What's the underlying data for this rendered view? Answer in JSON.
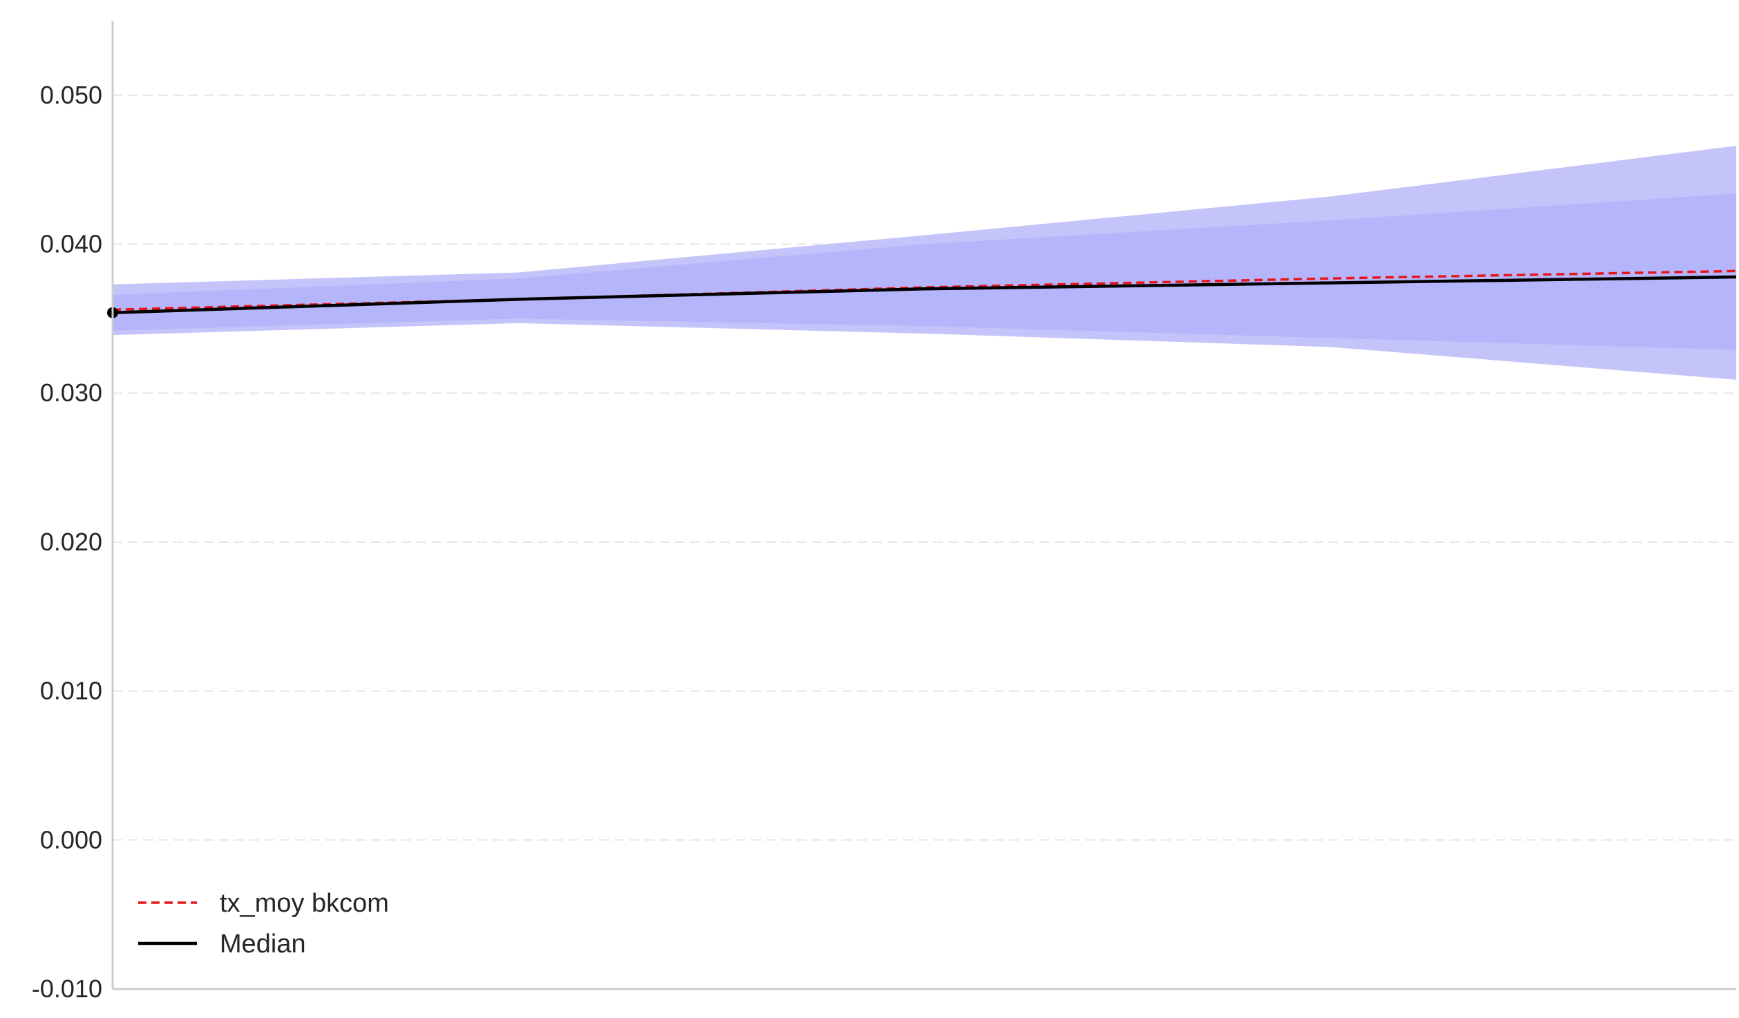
{
  "chart_data": {
    "type": "area",
    "title": "",
    "xlabel": "",
    "ylabel": "",
    "x": [
      0,
      1,
      2,
      3,
      4
    ],
    "xlim": [
      0,
      4
    ],
    "ylim": [
      -0.01,
      0.055
    ],
    "y_ticks": [
      -0.01,
      0.0,
      0.01,
      0.02,
      0.03,
      0.04,
      0.05
    ],
    "y_tick_labels": [
      "-0.010",
      "0.000",
      "0.010",
      "0.020",
      "0.030",
      "0.040",
      "0.050"
    ],
    "grid": "horizontal dashed",
    "bands": [
      {
        "lower": [
          0.0339,
          0.0347,
          0.034,
          0.0331,
          0.0309
        ],
        "upper": [
          0.0373,
          0.0381,
          0.0406,
          0.0432,
          0.0466
        ],
        "color": "#c4c4fb"
      },
      {
        "lower": [
          0.0342,
          0.035,
          0.0345,
          0.0337,
          0.0329
        ],
        "upper": [
          0.0366,
          0.0377,
          0.04,
          0.0416,
          0.0434
        ],
        "color": "#b5b5fb"
      }
    ],
    "series": [
      {
        "name": "tx_moy bkcom",
        "values": [
          0.0356,
          0.0363,
          0.0371,
          0.0377,
          0.0382
        ],
        "color": "#e8161b",
        "style": "dashed"
      },
      {
        "name": "Median",
        "values": [
          0.0354,
          0.0363,
          0.037,
          0.0374,
          0.0378
        ],
        "color": "#000000",
        "style": "solid"
      }
    ],
    "start_marker": {
      "x": 0,
      "y": 0.0354,
      "color": "#000000"
    },
    "legend": {
      "position": "lower-left"
    }
  }
}
